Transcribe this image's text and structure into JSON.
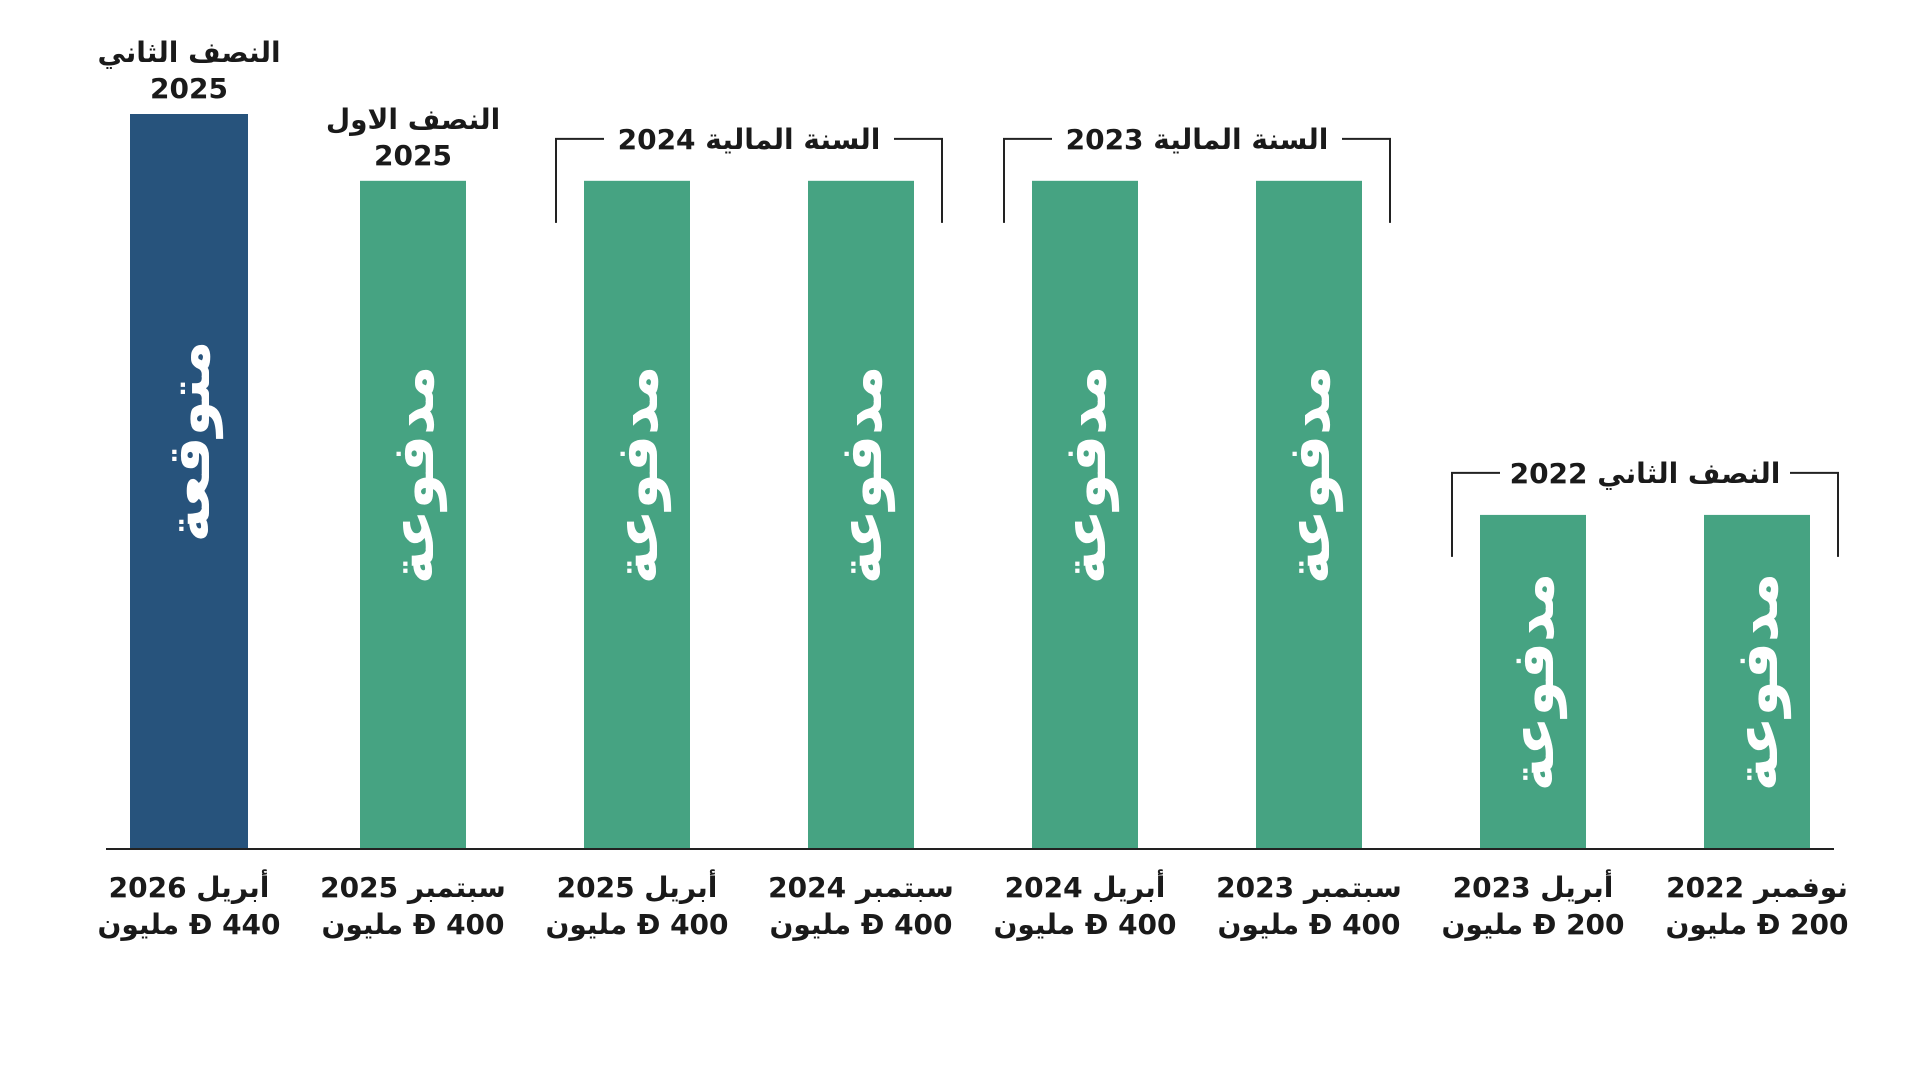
{
  "chart_data": {
    "type": "bar",
    "categories": [
      "أبريل 2026",
      "سبتمبر 2025",
      "أبريل 2025",
      "سبتمبر 2024",
      "أبريل 2024",
      "سبتمبر 2023",
      "أبريل 2023",
      "نوفمبر 2022"
    ],
    "amount_labels": [
      "440 Đ مليون",
      "400 Đ مليون",
      "400 Đ مليون",
      "400 Đ مليون",
      "400 Đ مليون",
      "400 Đ مليون",
      "200 Đ مليون",
      "200 Đ مليون"
    ],
    "values": [
      440,
      400,
      400,
      400,
      400,
      400,
      200,
      200
    ],
    "bar_labels": [
      "متوقعة",
      "مدفوعة",
      "مدفوعة",
      "مدفوعة",
      "مدفوعة",
      "مدفوعة",
      "مدفوعة",
      "مدفوعة"
    ],
    "bar_status": [
      "expected",
      "paid",
      "paid",
      "paid",
      "paid",
      "paid",
      "paid",
      "paid"
    ],
    "colors": {
      "expected": "#27537C",
      "paid": "#46A382",
      "axis": "#222222",
      "text": "#1a1a1a"
    },
    "ylim": [
      0,
      440
    ],
    "grid": false,
    "bar_top_labels": [
      {
        "bar": 0,
        "lines": [
          "النصف الثاني",
          "2025"
        ]
      },
      {
        "bar": 1,
        "lines": [
          "النصف الاول",
          "2025"
        ]
      }
    ],
    "group_brackets": [
      {
        "from": 2,
        "to": 3,
        "label": "السنة المالية 2024"
      },
      {
        "from": 4,
        "to": 5,
        "label": "السنة المالية 2023"
      },
      {
        "from": 6,
        "to": 7,
        "label": "النصف الثاني 2022"
      }
    ]
  }
}
